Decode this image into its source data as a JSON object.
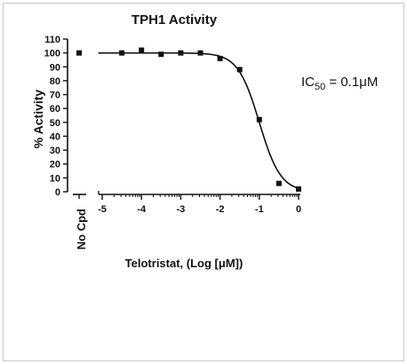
{
  "chart_data": {
    "type": "scatter",
    "title": "TPH1 Activity",
    "xlabel": "Telotristat, (Log [μM])",
    "ylabel": "% Activity",
    "xlim": [
      -5,
      0
    ],
    "ylim": [
      0,
      110
    ],
    "x_ticks": [
      -5,
      -4,
      -3,
      -2,
      -1,
      0
    ],
    "y_ticks": [
      0,
      10,
      20,
      30,
      40,
      50,
      60,
      70,
      80,
      90,
      100,
      110
    ],
    "control": {
      "label": "No Cpd",
      "y": 100
    },
    "series": [
      {
        "x": [
          -4.5,
          -4.0,
          -3.5,
          -3.0,
          -2.5,
          -2.0,
          -1.5,
          -1.0,
          -0.5,
          0.0
        ],
        "y": [
          100,
          102,
          99,
          100,
          100,
          96,
          88,
          52,
          6,
          2
        ],
        "marker": "square",
        "color": "#111111"
      }
    ],
    "fit": {
      "type": "sigmoidal",
      "top": 100,
      "bottom": 0,
      "log_ic50": -1.0,
      "hill_slope": -1.6
    },
    "annotation": {
      "prefix": "IC",
      "subscript": "50",
      "suffix": " = 0.1",
      "unit": "μM"
    },
    "grid": false,
    "legend": "none"
  }
}
